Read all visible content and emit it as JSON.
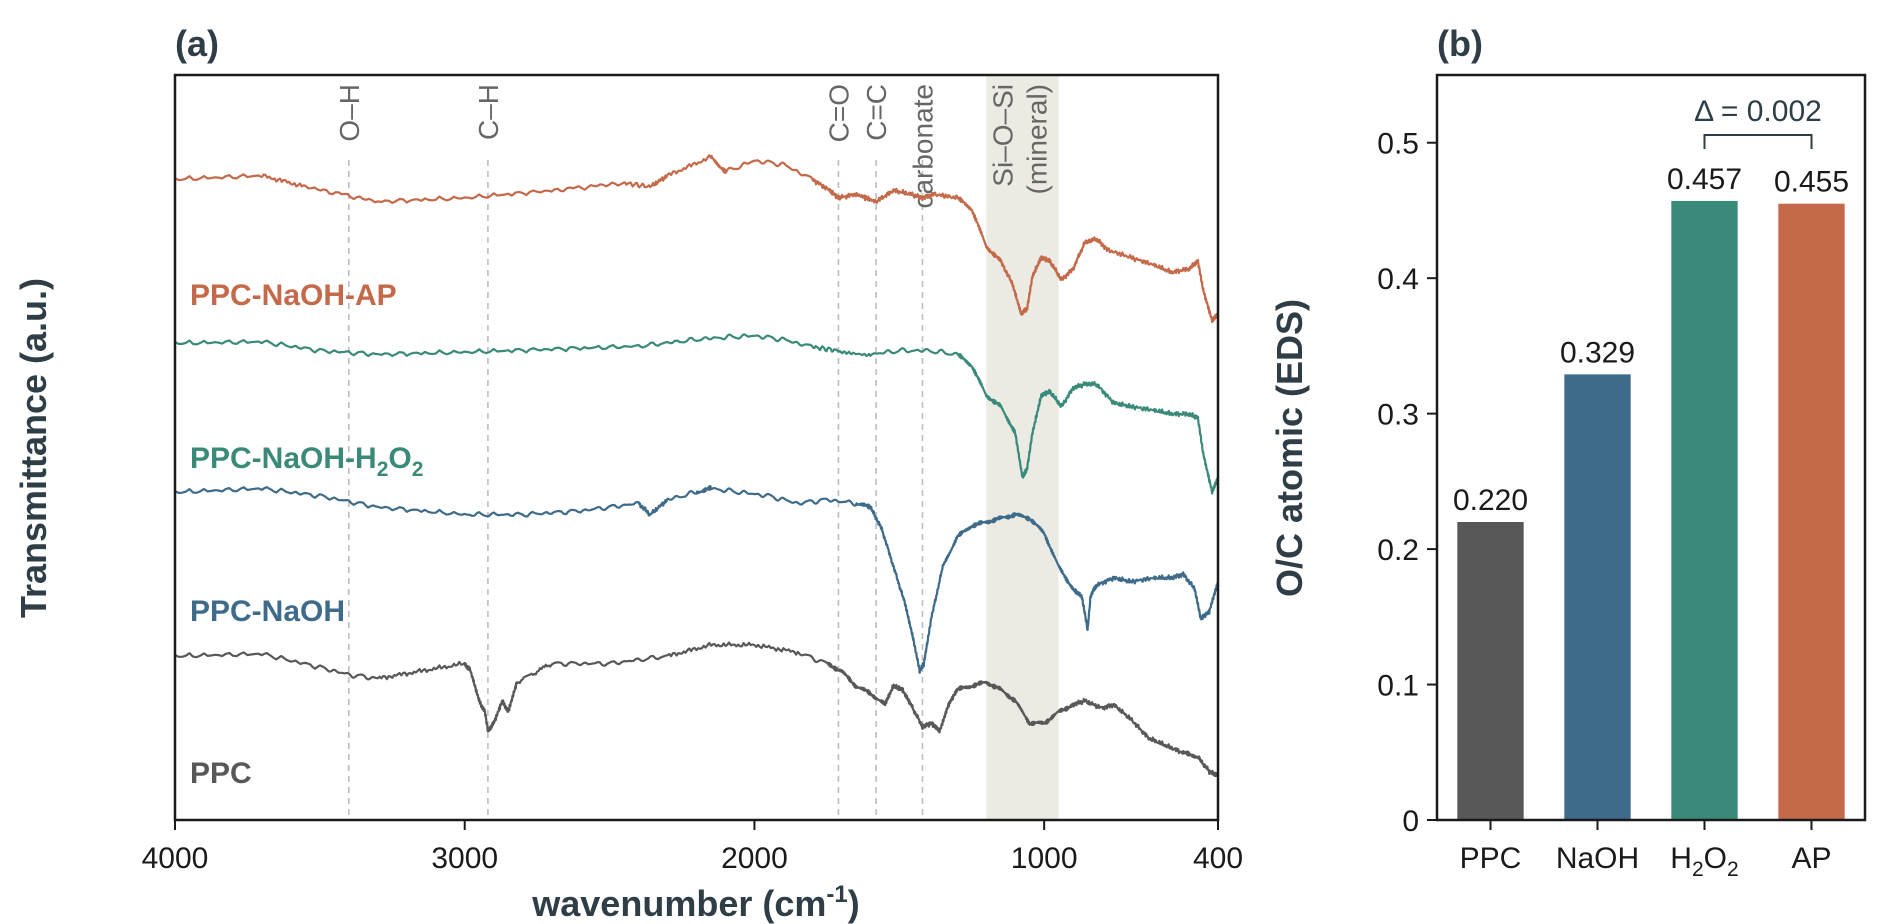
{
  "colors": {
    "PPC": "#585858",
    "NaOH": "#3e6b8a",
    "H2O2": "#3a8a7a",
    "AP": "#c4694a",
    "band": "#ebebe4",
    "axis": "#1a1a1a",
    "guide": "#bdbdbd"
  },
  "chart_data": [
    {
      "type": "line",
      "panel": "(a)",
      "xlabel": "wavenumber (cm",
      "xlabel_sup": "-1",
      "xlabel_close": ")",
      "ylabel": "Transmittance (a.u.)",
      "xlim": [
        4000,
        400
      ],
      "xticks": [
        "4000",
        "3000",
        "2000",
        "1000",
        "400"
      ],
      "xtick_values": [
        4000,
        3000,
        2000,
        1000,
        400
      ],
      "peak_markers": [
        {
          "label": "O–H",
          "x": 3400
        },
        {
          "label": "C–H",
          "x": 2920
        },
        {
          "label": "C=O",
          "x": 1710
        },
        {
          "label": "C=C",
          "x": 1580
        },
        {
          "label": "carbonate",
          "x": 1420
        }
      ],
      "shaded_band": {
        "x_range": [
          1200,
          950
        ],
        "line1": "Si–O–Si",
        "line2": "(mineral)"
      },
      "series_labels": {
        "AP": "PPC-NaOH-AP",
        "H2O2_prefix": "PPC-NaOH-H",
        "H2O2_sub1": "2",
        "H2O2_mid": "O",
        "H2O2_sub2": "2",
        "NaOH": "PPC-NaOH",
        "PPC": "PPC"
      },
      "series": [
        {
          "key": "AP",
          "offset": 0.86,
          "points": [
            [
              4000,
              0
            ],
            [
              3700,
              0.005
            ],
            [
              3550,
              -0.01
            ],
            [
              3300,
              -0.03
            ],
            [
              3000,
              -0.025
            ],
            [
              2700,
              -0.015
            ],
            [
              2450,
              -0.005
            ],
            [
              2360,
              -0.01
            ],
            [
              2300,
              0.005
            ],
            [
              2150,
              0.03
            ],
            [
              2100,
              0.01
            ],
            [
              2000,
              0.025
            ],
            [
              1900,
              0.02
            ],
            [
              1800,
              0.0
            ],
            [
              1740,
              -0.015
            ],
            [
              1710,
              -0.025
            ],
            [
              1650,
              -0.02
            ],
            [
              1580,
              -0.03
            ],
            [
              1520,
              -0.015
            ],
            [
              1460,
              -0.02
            ],
            [
              1420,
              -0.025
            ],
            [
              1380,
              -0.02
            ],
            [
              1300,
              -0.025
            ],
            [
              1250,
              -0.04
            ],
            [
              1200,
              -0.09
            ],
            [
              1150,
              -0.11
            ],
            [
              1110,
              -0.14
            ],
            [
              1080,
              -0.18
            ],
            [
              1060,
              -0.175
            ],
            [
              1040,
              -0.13
            ],
            [
              1010,
              -0.105
            ],
            [
              980,
              -0.11
            ],
            [
              940,
              -0.135
            ],
            [
              900,
              -0.12
            ],
            [
              860,
              -0.085
            ],
            [
              820,
              -0.08
            ],
            [
              780,
              -0.095
            ],
            [
              700,
              -0.105
            ],
            [
              620,
              -0.115
            ],
            [
              560,
              -0.125
            ],
            [
              500,
              -0.12
            ],
            [
              470,
              -0.11
            ],
            [
              450,
              -0.15
            ],
            [
              420,
              -0.19
            ],
            [
              400,
              -0.18
            ]
          ]
        },
        {
          "key": "H2O2",
          "offset": 0.64,
          "points": [
            [
              4000,
              0
            ],
            [
              3700,
              0.002
            ],
            [
              3500,
              -0.01
            ],
            [
              3300,
              -0.015
            ],
            [
              3000,
              -0.012
            ],
            [
              2700,
              -0.008
            ],
            [
              2400,
              -0.004
            ],
            [
              2200,
              0.005
            ],
            [
              2100,
              0.008
            ],
            [
              2000,
              0.01
            ],
            [
              1900,
              0.005
            ],
            [
              1800,
              -0.005
            ],
            [
              1710,
              -0.01
            ],
            [
              1600,
              -0.015
            ],
            [
              1500,
              -0.01
            ],
            [
              1400,
              -0.01
            ],
            [
              1300,
              -0.015
            ],
            [
              1250,
              -0.03
            ],
            [
              1200,
              -0.07
            ],
            [
              1150,
              -0.085
            ],
            [
              1100,
              -0.12
            ],
            [
              1075,
              -0.18
            ],
            [
              1060,
              -0.17
            ],
            [
              1040,
              -0.12
            ],
            [
              1010,
              -0.07
            ],
            [
              980,
              -0.065
            ],
            [
              940,
              -0.085
            ],
            [
              900,
              -0.06
            ],
            [
              860,
              -0.055
            ],
            [
              820,
              -0.055
            ],
            [
              760,
              -0.08
            ],
            [
              700,
              -0.085
            ],
            [
              620,
              -0.09
            ],
            [
              560,
              -0.095
            ],
            [
              500,
              -0.095
            ],
            [
              470,
              -0.1
            ],
            [
              450,
              -0.15
            ],
            [
              420,
              -0.2
            ],
            [
              400,
              -0.18
            ]
          ]
        },
        {
          "key": "NaOH",
          "offset": 0.44,
          "points": [
            [
              4000,
              0
            ],
            [
              3700,
              0.005
            ],
            [
              3500,
              -0.005
            ],
            [
              3300,
              -0.02
            ],
            [
              3000,
              -0.03
            ],
            [
              2800,
              -0.03
            ],
            [
              2600,
              -0.025
            ],
            [
              2400,
              -0.015
            ],
            [
              2360,
              -0.03
            ],
            [
              2300,
              -0.01
            ],
            [
              2200,
              0.0
            ],
            [
              2150,
              0.005
            ],
            [
              2050,
              0.0
            ],
            [
              1950,
              -0.005
            ],
            [
              1850,
              -0.015
            ],
            [
              1750,
              -0.01
            ],
            [
              1650,
              -0.015
            ],
            [
              1600,
              -0.02
            ],
            [
              1560,
              -0.05
            ],
            [
              1520,
              -0.1
            ],
            [
              1480,
              -0.15
            ],
            [
              1450,
              -0.2
            ],
            [
              1430,
              -0.24
            ],
            [
              1415,
              -0.23
            ],
            [
              1390,
              -0.17
            ],
            [
              1350,
              -0.1
            ],
            [
              1300,
              -0.06
            ],
            [
              1250,
              -0.045
            ],
            [
              1200,
              -0.04
            ],
            [
              1150,
              -0.035
            ],
            [
              1100,
              -0.03
            ],
            [
              1050,
              -0.035
            ],
            [
              1000,
              -0.055
            ],
            [
              950,
              -0.1
            ],
            [
              900,
              -0.13
            ],
            [
              870,
              -0.14
            ],
            [
              850,
              -0.185
            ],
            [
              840,
              -0.14
            ],
            [
              820,
              -0.125
            ],
            [
              760,
              -0.115
            ],
            [
              700,
              -0.12
            ],
            [
              620,
              -0.115
            ],
            [
              560,
              -0.115
            ],
            [
              520,
              -0.11
            ],
            [
              480,
              -0.13
            ],
            [
              460,
              -0.17
            ],
            [
              430,
              -0.16
            ],
            [
              400,
              -0.12
            ]
          ]
        },
        {
          "key": "PPC",
          "offset": 0.22,
          "points": [
            [
              4000,
              0
            ],
            [
              3700,
              0.003
            ],
            [
              3500,
              -0.015
            ],
            [
              3400,
              -0.025
            ],
            [
              3300,
              -0.03
            ],
            [
              3150,
              -0.02
            ],
            [
              3000,
              -0.01
            ],
            [
              2980,
              -0.02
            ],
            [
              2950,
              -0.06
            ],
            [
              2930,
              -0.075
            ],
            [
              2920,
              -0.1
            ],
            [
              2900,
              -0.09
            ],
            [
              2870,
              -0.06
            ],
            [
              2850,
              -0.075
            ],
            [
              2820,
              -0.035
            ],
            [
              2700,
              -0.01
            ],
            [
              2500,
              -0.01
            ],
            [
              2300,
              0.0
            ],
            [
              2150,
              0.015
            ],
            [
              2000,
              0.015
            ],
            [
              1850,
              0.005
            ],
            [
              1750,
              -0.01
            ],
            [
              1700,
              -0.02
            ],
            [
              1650,
              -0.04
            ],
            [
              1600,
              -0.05
            ],
            [
              1550,
              -0.065
            ],
            [
              1520,
              -0.04
            ],
            [
              1490,
              -0.045
            ],
            [
              1460,
              -0.065
            ],
            [
              1420,
              -0.095
            ],
            [
              1390,
              -0.09
            ],
            [
              1360,
              -0.1
            ],
            [
              1330,
              -0.065
            ],
            [
              1300,
              -0.045
            ],
            [
              1250,
              -0.04
            ],
            [
              1200,
              -0.035
            ],
            [
              1150,
              -0.045
            ],
            [
              1100,
              -0.06
            ],
            [
              1050,
              -0.09
            ],
            [
              1000,
              -0.09
            ],
            [
              950,
              -0.075
            ],
            [
              900,
              -0.065
            ],
            [
              860,
              -0.06
            ],
            [
              800,
              -0.07
            ],
            [
              760,
              -0.065
            ],
            [
              700,
              -0.085
            ],
            [
              640,
              -0.11
            ],
            [
              580,
              -0.12
            ],
            [
              520,
              -0.13
            ],
            [
              470,
              -0.135
            ],
            [
              430,
              -0.155
            ],
            [
              400,
              -0.16
            ]
          ]
        }
      ]
    },
    {
      "type": "bar",
      "panel": "(b)",
      "ylabel": "O/C atomic (EDS)",
      "ylim": [
        0,
        0.55
      ],
      "yticks": [
        "0",
        "0.1",
        "0.2",
        "0.3",
        "0.4",
        "0.5"
      ],
      "ytick_values": [
        0,
        0.1,
        0.2,
        0.3,
        0.4,
        0.5
      ],
      "categories": [
        {
          "key": "PPC",
          "label": "PPC"
        },
        {
          "key": "NaOH",
          "label": "NaOH"
        },
        {
          "key": "H2O2",
          "label_main": "H",
          "label_sub": "2",
          "label_rest": "O",
          "label_sub2": "2"
        },
        {
          "key": "AP",
          "label": "AP"
        }
      ],
      "values": [
        0.22,
        0.329,
        0.457,
        0.455
      ],
      "value_labels": [
        "0.220",
        "0.329",
        "0.457",
        "0.455"
      ],
      "annotation": {
        "label": "Δ = 0.002",
        "between": [
          "H2O2",
          "AP"
        ]
      }
    }
  ]
}
